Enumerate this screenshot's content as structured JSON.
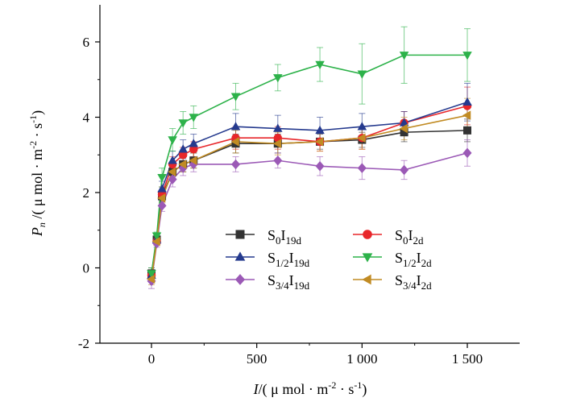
{
  "chart_data": {
    "type": "line",
    "xlabel_main": "I",
    "xlabel_unit": "/( μ mol · m",
    "xlabel_sup1": "-2",
    "xlabel_mid": " · s",
    "xlabel_sup2": "-1",
    "xlabel_end": ")",
    "ylabel_main": "P",
    "ylabel_sub": "n",
    "ylabel_unit": " /( μ mol · m",
    "ylabel_sup1": "-2",
    "ylabel_mid": " · s",
    "ylabel_sup2": "-1",
    "ylabel_end": ")",
    "xlim": [
      -250,
      1750
    ],
    "ylim": [
      -2,
      7
    ],
    "x_ticks": [
      0,
      500,
      1000,
      1500
    ],
    "x_tick_labels": [
      "0",
      "500",
      "1 000",
      "1 500"
    ],
    "y_ticks": [
      -2,
      0,
      2,
      4,
      6
    ],
    "y_tick_labels": [
      "-2",
      "0",
      "2",
      "4",
      "6"
    ],
    "x": [
      0,
      25,
      50,
      100,
      150,
      200,
      400,
      600,
      800,
      1000,
      1200,
      1500
    ],
    "series": [
      {
        "name": "S0I19d",
        "label_base": "S",
        "label_sub1": "0",
        "label_mid": "I",
        "label_sub2": "19d",
        "color": "#333333",
        "marker": "square",
        "values": [
          -0.15,
          0.75,
          1.9,
          2.55,
          2.75,
          2.85,
          3.3,
          3.3,
          3.35,
          3.4,
          3.6,
          3.65
        ],
        "errors": [
          0.15,
          0.1,
          0.15,
          0.2,
          0.2,
          0.2,
          0.25,
          0.25,
          0.2,
          0.2,
          0.25,
          0.3
        ]
      },
      {
        "name": "S0I2d",
        "label_base": "S",
        "label_sub1": "0",
        "label_mid": "I",
        "label_sub2": "2d",
        "color": "#e8262a",
        "marker": "circle",
        "values": [
          -0.2,
          0.7,
          1.95,
          2.75,
          3.0,
          3.15,
          3.45,
          3.45,
          3.35,
          3.45,
          3.85,
          4.3
        ],
        "errors": [
          0.15,
          0.1,
          0.2,
          0.2,
          0.2,
          0.2,
          0.3,
          0.3,
          0.25,
          0.3,
          0.3,
          0.5
        ]
      },
      {
        "name": "S1/2I19d",
        "label_base": "S",
        "label_sub1": "1/2",
        "label_mid": "I",
        "label_sub2": "19d",
        "color": "#253a8e",
        "marker": "triangle-up",
        "values": [
          -0.2,
          0.75,
          2.1,
          2.85,
          3.15,
          3.3,
          3.75,
          3.7,
          3.65,
          3.75,
          3.85,
          4.4
        ],
        "errors": [
          0.15,
          0.1,
          0.2,
          0.25,
          0.25,
          0.25,
          0.35,
          0.35,
          0.35,
          0.35,
          0.3,
          0.5
        ]
      },
      {
        "name": "S1/2I2d",
        "label_base": "S",
        "label_sub1": "1/2",
        "label_mid": "I",
        "label_sub2": "2d",
        "color": "#2db24a",
        "marker": "triangle-down",
        "values": [
          -0.15,
          0.85,
          2.4,
          3.4,
          3.85,
          4.0,
          4.55,
          5.05,
          5.4,
          5.15,
          5.65,
          5.65
        ],
        "errors": [
          0.15,
          0.1,
          0.25,
          0.3,
          0.3,
          0.3,
          0.35,
          0.35,
          0.45,
          0.8,
          0.75,
          0.7
        ]
      },
      {
        "name": "S3/4I19d",
        "label_base": "S",
        "label_sub1": "3/4",
        "label_mid": "I",
        "label_sub2": "19d",
        "color": "#9b59b6",
        "marker": "diamond",
        "values": [
          -0.35,
          0.65,
          1.65,
          2.35,
          2.65,
          2.75,
          2.75,
          2.85,
          2.7,
          2.65,
          2.6,
          3.05
        ],
        "errors": [
          0.2,
          0.1,
          0.15,
          0.2,
          0.2,
          0.2,
          0.2,
          0.2,
          0.25,
          0.3,
          0.25,
          0.35
        ]
      },
      {
        "name": "S3/4I2d",
        "label_base": "S",
        "label_sub1": "3/4",
        "label_mid": "I",
        "label_sub2": "2d",
        "color": "#c18b23",
        "marker": "triangle-left",
        "values": [
          -0.3,
          0.7,
          1.85,
          2.55,
          2.75,
          2.85,
          3.35,
          3.3,
          3.35,
          3.45,
          3.7,
          4.05
        ],
        "errors": [
          0.15,
          0.1,
          0.15,
          0.2,
          0.2,
          0.2,
          0.3,
          0.3,
          0.25,
          0.3,
          0.3,
          0.45
        ]
      }
    ],
    "grid": false,
    "legend_position": "lower-center-inside"
  }
}
